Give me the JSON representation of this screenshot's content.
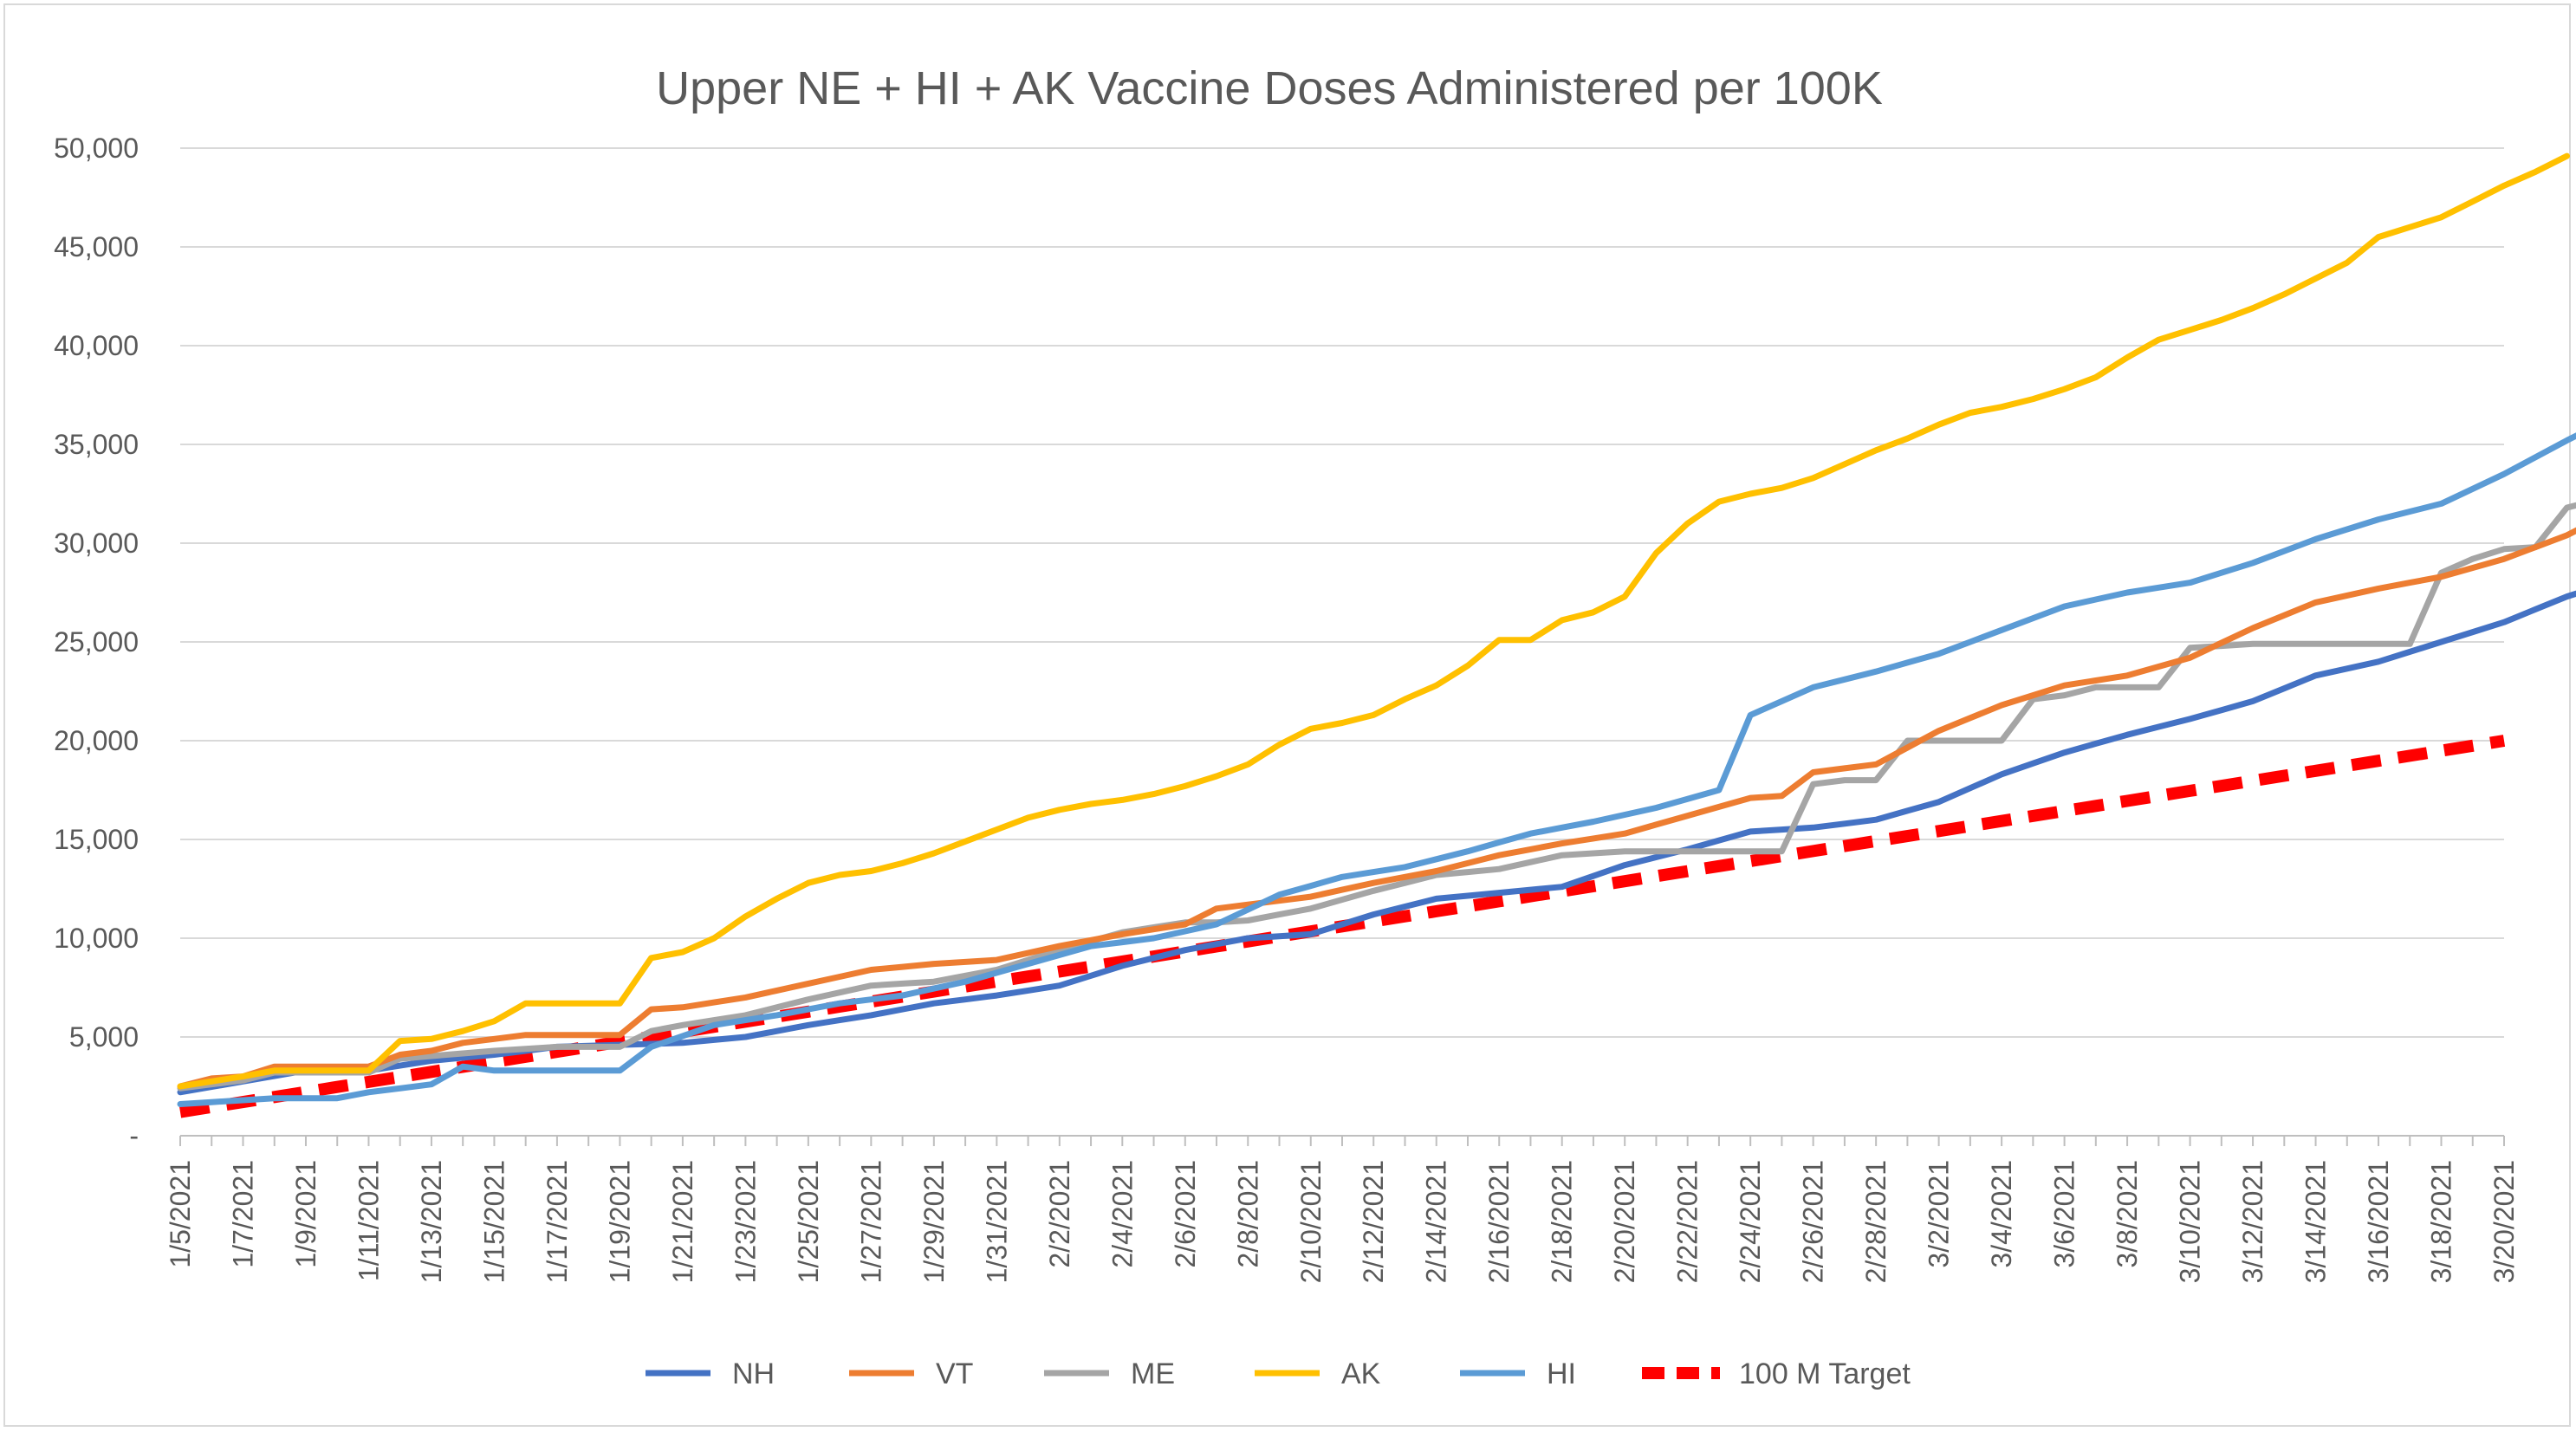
{
  "chart_data": {
    "type": "line",
    "title": "Upper NE + HI + AK Vaccine Doses Administered per 100K",
    "xlabel": "",
    "ylabel": "",
    "ylim": [
      0,
      50000
    ],
    "grid": true,
    "legend_position": "bottom",
    "y_ticks": [
      {
        "value": 0,
        "label": "-"
      },
      {
        "value": 5000,
        "label": "5,000"
      },
      {
        "value": 10000,
        "label": "10,000"
      },
      {
        "value": 15000,
        "label": "15,000"
      },
      {
        "value": 20000,
        "label": "20,000"
      },
      {
        "value": 25000,
        "label": "25,000"
      },
      {
        "value": 30000,
        "label": "30,000"
      },
      {
        "value": 35000,
        "label": "35,000"
      },
      {
        "value": 40000,
        "label": "40,000"
      },
      {
        "value": 45000,
        "label": "45,000"
      },
      {
        "value": 50000,
        "label": "50,000"
      }
    ],
    "x_tick_labels": [
      "1/5/2021",
      "1/7/2021",
      "1/9/2021",
      "1/11/2021",
      "1/13/2021",
      "1/15/2021",
      "1/17/2021",
      "1/19/2021",
      "1/21/2021",
      "1/23/2021",
      "1/25/2021",
      "1/27/2021",
      "1/29/2021",
      "1/31/2021",
      "2/2/2021",
      "2/4/2021",
      "2/6/2021",
      "2/8/2021",
      "2/10/2021",
      "2/12/2021",
      "2/14/2021",
      "2/16/2021",
      "2/18/2021",
      "2/20/2021",
      "2/22/2021",
      "2/24/2021",
      "2/26/2021",
      "2/28/2021",
      "3/2/2021",
      "3/4/2021",
      "3/6/2021",
      "3/8/2021",
      "3/10/2021",
      "3/12/2021",
      "3/14/2021",
      "3/16/2021",
      "3/18/2021",
      "3/20/2021"
    ],
    "x_count": 75,
    "series": [
      {
        "name": "NH",
        "color": "#4472c4",
        "dashed": false,
        "keypoints": [
          [
            0,
            2200
          ],
          [
            4,
            3300
          ],
          [
            6,
            3300
          ],
          [
            8,
            3800
          ],
          [
            10,
            4100
          ],
          [
            12,
            4500
          ],
          [
            14,
            4600
          ],
          [
            16,
            4700
          ],
          [
            18,
            5000
          ],
          [
            20,
            5600
          ],
          [
            22,
            6100
          ],
          [
            24,
            6700
          ],
          [
            26,
            7100
          ],
          [
            28,
            7600
          ],
          [
            30,
            8600
          ],
          [
            32,
            9400
          ],
          [
            34,
            10000
          ],
          [
            36,
            10200
          ],
          [
            38,
            11200
          ],
          [
            40,
            12000
          ],
          [
            42,
            12300
          ],
          [
            44,
            12600
          ],
          [
            46,
            13700
          ],
          [
            48,
            14500
          ],
          [
            50,
            15400
          ],
          [
            52,
            15600
          ],
          [
            54,
            16000
          ],
          [
            56,
            16900
          ],
          [
            58,
            18300
          ],
          [
            60,
            19400
          ],
          [
            62,
            20300
          ],
          [
            64,
            21100
          ],
          [
            66,
            22000
          ],
          [
            68,
            23300
          ],
          [
            70,
            24000
          ],
          [
            72,
            25000
          ],
          [
            74,
            26000
          ],
          [
            76,
            27300
          ],
          [
            78,
            28300
          ],
          [
            80,
            29200
          ],
          [
            82,
            30700
          ],
          [
            84,
            31800
          ],
          [
            86,
            33500
          ],
          [
            88,
            34200
          ],
          [
            90,
            35100
          ],
          [
            92,
            36200
          ],
          [
            94,
            37800
          ]
        ]
      },
      {
        "name": "VT",
        "color": "#ed7d31",
        "dashed": false,
        "keypoints": [
          [
            0,
            2500
          ],
          [
            1,
            2900
          ],
          [
            2,
            3000
          ],
          [
            3,
            3500
          ],
          [
            6,
            3500
          ],
          [
            7,
            4100
          ],
          [
            8,
            4300
          ],
          [
            9,
            4700
          ],
          [
            10,
            4900
          ],
          [
            11,
            5100
          ],
          [
            14,
            5100
          ],
          [
            15,
            6400
          ],
          [
            16,
            6500
          ],
          [
            18,
            7000
          ],
          [
            20,
            7700
          ],
          [
            22,
            8400
          ],
          [
            24,
            8700
          ],
          [
            26,
            8900
          ],
          [
            28,
            9600
          ],
          [
            30,
            10200
          ],
          [
            32,
            10700
          ],
          [
            33,
            11500
          ],
          [
            34,
            11700
          ],
          [
            36,
            12100
          ],
          [
            38,
            12800
          ],
          [
            40,
            13400
          ],
          [
            42,
            14200
          ],
          [
            44,
            14800
          ],
          [
            46,
            15300
          ],
          [
            48,
            16200
          ],
          [
            50,
            17100
          ],
          [
            51,
            17200
          ],
          [
            52,
            18400
          ],
          [
            54,
            18800
          ],
          [
            56,
            20500
          ],
          [
            58,
            21800
          ],
          [
            60,
            22800
          ],
          [
            62,
            23300
          ],
          [
            64,
            24200
          ],
          [
            66,
            25700
          ],
          [
            68,
            27000
          ],
          [
            70,
            27700
          ],
          [
            72,
            28300
          ],
          [
            74,
            29200
          ],
          [
            76,
            30400
          ],
          [
            78,
            32000
          ],
          [
            80,
            33600
          ],
          [
            82,
            35100
          ],
          [
            83,
            37000
          ],
          [
            84,
            37000
          ],
          [
            86,
            38400
          ],
          [
            88,
            39300
          ],
          [
            90,
            40600
          ],
          [
            92,
            41900
          ],
          [
            94,
            42600
          ]
        ]
      },
      {
        "name": "ME",
        "color": "#a5a5a5",
        "dashed": false,
        "keypoints": [
          [
            0,
            2400
          ],
          [
            2,
            2800
          ],
          [
            3,
            3200
          ],
          [
            6,
            3200
          ],
          [
            7,
            3900
          ],
          [
            10,
            4300
          ],
          [
            12,
            4500
          ],
          [
            14,
            4500
          ],
          [
            15,
            5300
          ],
          [
            16,
            5600
          ],
          [
            18,
            6100
          ],
          [
            20,
            6900
          ],
          [
            22,
            7600
          ],
          [
            24,
            7800
          ],
          [
            26,
            8400
          ],
          [
            28,
            9400
          ],
          [
            30,
            10300
          ],
          [
            32,
            10800
          ],
          [
            33,
            10800
          ],
          [
            34,
            10900
          ],
          [
            36,
            11500
          ],
          [
            38,
            12400
          ],
          [
            40,
            13200
          ],
          [
            42,
            13500
          ],
          [
            44,
            14200
          ],
          [
            46,
            14400
          ],
          [
            48,
            14400
          ],
          [
            50,
            14400
          ],
          [
            51,
            14400
          ],
          [
            52,
            17800
          ],
          [
            53,
            18000
          ],
          [
            54,
            18000
          ],
          [
            55,
            20000
          ],
          [
            57,
            20000
          ],
          [
            58,
            20000
          ],
          [
            59,
            22100
          ],
          [
            60,
            22300
          ],
          [
            61,
            22700
          ],
          [
            63,
            22700
          ],
          [
            64,
            24700
          ],
          [
            66,
            24900
          ],
          [
            68,
            24900
          ],
          [
            70,
            24900
          ],
          [
            71,
            24900
          ],
          [
            72,
            28500
          ],
          [
            73,
            29200
          ],
          [
            74,
            29700
          ],
          [
            75,
            29800
          ],
          [
            76,
            31800
          ],
          [
            77,
            32200
          ],
          [
            78,
            32800
          ],
          [
            79,
            33100
          ],
          [
            80,
            35400
          ],
          [
            81,
            35500
          ],
          [
            82,
            36900
          ],
          [
            83,
            37900
          ],
          [
            84,
            38900
          ],
          [
            85,
            39300
          ],
          [
            86,
            39300
          ],
          [
            87,
            39300
          ],
          [
            88,
            40400
          ],
          [
            89,
            41400
          ],
          [
            90,
            41500
          ],
          [
            94,
            41500
          ]
        ]
      },
      {
        "name": "AK",
        "color": "#ffc000",
        "dashed": false,
        "keypoints": [
          [
            0,
            2500
          ],
          [
            2,
            3000
          ],
          [
            3,
            3300
          ],
          [
            6,
            3300
          ],
          [
            7,
            4800
          ],
          [
            8,
            4900
          ],
          [
            9,
            5300
          ],
          [
            10,
            5800
          ],
          [
            11,
            6700
          ],
          [
            14,
            6700
          ],
          [
            15,
            9000
          ],
          [
            16,
            9300
          ],
          [
            17,
            10000
          ],
          [
            18,
            11100
          ],
          [
            19,
            12000
          ],
          [
            20,
            12800
          ],
          [
            21,
            13200
          ],
          [
            22,
            13400
          ],
          [
            23,
            13800
          ],
          [
            24,
            14300
          ],
          [
            25,
            14900
          ],
          [
            26,
            15500
          ],
          [
            27,
            16100
          ],
          [
            28,
            16500
          ],
          [
            29,
            16800
          ],
          [
            30,
            17000
          ],
          [
            31,
            17300
          ],
          [
            32,
            17700
          ],
          [
            33,
            18200
          ],
          [
            34,
            18800
          ],
          [
            35,
            19800
          ],
          [
            36,
            20600
          ],
          [
            37,
            20900
          ],
          [
            38,
            21300
          ],
          [
            39,
            22100
          ],
          [
            40,
            22800
          ],
          [
            41,
            23800
          ],
          [
            42,
            25100
          ],
          [
            43,
            25100
          ],
          [
            44,
            26100
          ],
          [
            45,
            26500
          ],
          [
            46,
            27300
          ],
          [
            47,
            29500
          ],
          [
            48,
            31000
          ],
          [
            49,
            32100
          ],
          [
            50,
            32500
          ],
          [
            51,
            32800
          ],
          [
            52,
            33300
          ],
          [
            53,
            34000
          ],
          [
            54,
            34700
          ],
          [
            55,
            35300
          ],
          [
            56,
            36000
          ],
          [
            57,
            36600
          ],
          [
            58,
            36900
          ],
          [
            59,
            37300
          ],
          [
            60,
            37800
          ],
          [
            61,
            38400
          ],
          [
            62,
            39400
          ],
          [
            63,
            40300
          ],
          [
            64,
            40800
          ],
          [
            65,
            41300
          ],
          [
            66,
            41900
          ],
          [
            67,
            42600
          ],
          [
            68,
            43400
          ],
          [
            69,
            44200
          ],
          [
            70,
            45500
          ],
          [
            71,
            46000
          ],
          [
            72,
            46500
          ],
          [
            73,
            47300
          ],
          [
            74,
            48100
          ],
          [
            75,
            48800
          ],
          [
            76,
            49600
          ]
        ]
      },
      {
        "name": "HI",
        "color": "#5b9bd5",
        "dashed": false,
        "keypoints": [
          [
            0,
            1600
          ],
          [
            3,
            1900
          ],
          [
            4,
            1900
          ],
          [
            5,
            1900
          ],
          [
            6,
            2200
          ],
          [
            8,
            2600
          ],
          [
            9,
            3500
          ],
          [
            10,
            3300
          ],
          [
            11,
            3300
          ],
          [
            14,
            3300
          ],
          [
            15,
            4500
          ],
          [
            17,
            5600
          ],
          [
            19,
            6100
          ],
          [
            21,
            6700
          ],
          [
            23,
            7100
          ],
          [
            25,
            7800
          ],
          [
            27,
            8700
          ],
          [
            29,
            9600
          ],
          [
            31,
            10000
          ],
          [
            33,
            10700
          ],
          [
            35,
            12200
          ],
          [
            37,
            13100
          ],
          [
            39,
            13600
          ],
          [
            41,
            14400
          ],
          [
            43,
            15300
          ],
          [
            45,
            15900
          ],
          [
            47,
            16600
          ],
          [
            49,
            17500
          ],
          [
            50,
            21300
          ],
          [
            52,
            22700
          ],
          [
            54,
            23500
          ],
          [
            56,
            24400
          ],
          [
            58,
            25600
          ],
          [
            60,
            26800
          ],
          [
            62,
            27500
          ],
          [
            64,
            28000
          ],
          [
            66,
            29000
          ],
          [
            68,
            30200
          ],
          [
            70,
            31200
          ],
          [
            72,
            32000
          ],
          [
            74,
            33500
          ],
          [
            76,
            35200
          ],
          [
            78,
            36800
          ],
          [
            80,
            37700
          ],
          [
            82,
            38600
          ],
          [
            84,
            40000
          ],
          [
            86,
            41400
          ],
          [
            88,
            42500
          ]
        ]
      },
      {
        "name": "100 M Target",
        "color": "#ff0000",
        "dashed": true,
        "keypoints": [
          [
            0,
            1200
          ],
          [
            74,
            20000
          ]
        ]
      }
    ]
  }
}
